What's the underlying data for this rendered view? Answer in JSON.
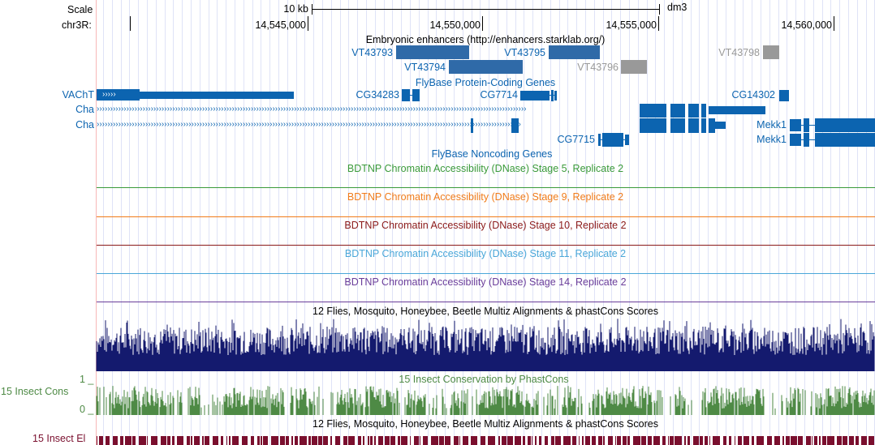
{
  "ruler": {
    "scale_label": "Scale",
    "chrom_label": "chr3R:",
    "scale_bar_label": "10 kb",
    "assembly": "dm3",
    "positions": [
      "14,545,000",
      "14,550,000",
      "14,555,000",
      "14,560,000"
    ]
  },
  "enhancers": {
    "title": "Embryonic enhancers (http://enhancers.starklab.org/)",
    "items": [
      "VT43793",
      "VT43794",
      "VT43795",
      "VT43796",
      "VT43798"
    ]
  },
  "protein_genes": {
    "title": "FlyBase Protein-Coding Genes",
    "genes": [
      "VAChT",
      "CG34283",
      "CG7714",
      "CG14302",
      "Cha",
      "Cha",
      "CG7715",
      "Mekk1",
      "Mekk1"
    ]
  },
  "noncoding": {
    "title": "FlyBase Noncoding Genes"
  },
  "dnase_tracks": [
    {
      "title": "BDTNP Chromatin Accessibility (DNase) Stage 5, Replicate 2",
      "color": "#3a9a3a"
    },
    {
      "title": "BDTNP Chromatin Accessibility (DNase) Stage 9, Replicate 2",
      "color": "#f07b1a"
    },
    {
      "title": "BDTNP Chromatin Accessibility (DNase) Stage 10, Replicate 2",
      "color": "#8b1a1a"
    },
    {
      "title": "BDTNP Chromatin Accessibility (DNase) Stage 11, Replicate 2",
      "color": "#4aa7d9"
    },
    {
      "title": "BDTNP Chromatin Accessibility (DNase) Stage 14, Replicate 2",
      "color": "#6a3d9a"
    }
  ],
  "multiz": {
    "title": "12 Flies, Mosquito, Honeybee, Beetle Multiz Alignments & phastCons Scores",
    "color": "#141a6e"
  },
  "phastcons": {
    "title": "15 Insect Conservation by PhastCons",
    "side_label": "15 Insect Cons",
    "axis_max": "1 _",
    "axis_min": "0 _",
    "color": "#4e8a45"
  },
  "elements": {
    "title": "12 Flies, Mosquito, Honeybee, Beetle Multiz Alignments & phastCons Scores",
    "side_label": "15 Insect El",
    "color": "#7a0f2e"
  }
}
